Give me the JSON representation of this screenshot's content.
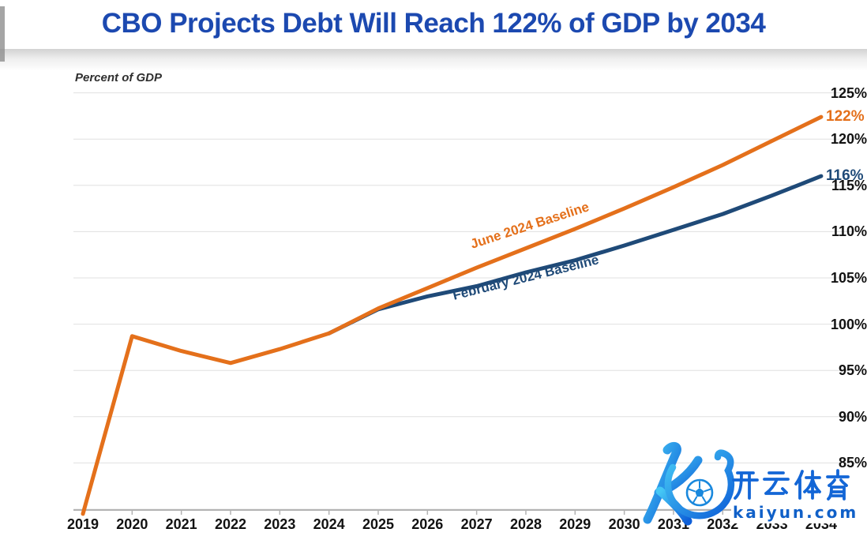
{
  "title": "CBO Projects Debt Will Reach 122% of GDP by 2034",
  "chart_data": {
    "type": "line",
    "title": "CBO Projects Debt Will Reach 122% of GDP by 2034",
    "xlabel": "",
    "ylabel": "Percent of GDP",
    "ylim": [
      80,
      125
    ],
    "grid": true,
    "legend_position": "inline-rotated-labels",
    "x": [
      2019,
      2020,
      2021,
      2022,
      2023,
      2024,
      2025,
      2026,
      2027,
      2028,
      2029,
      2030,
      2031,
      2032,
      2033,
      2034
    ],
    "y_axis": {
      "ticks": [
        {
          "value": 125,
          "label": "125%"
        },
        {
          "value": 120,
          "label": "120%"
        },
        {
          "value": 115,
          "label": "115%"
        },
        {
          "value": 110,
          "label": "110%"
        },
        {
          "value": 105,
          "label": "105%"
        },
        {
          "value": 100,
          "label": "100%"
        },
        {
          "value": 95,
          "label": "95%"
        },
        {
          "value": 90,
          "label": "90%"
        },
        {
          "value": 85,
          "label": "85%"
        },
        {
          "value": 80,
          "label": "80%"
        }
      ]
    },
    "x_axis": {
      "ticks": [
        {
          "value": 2019,
          "label": "2019"
        },
        {
          "value": 2020,
          "label": "2020"
        },
        {
          "value": 2021,
          "label": "2021"
        },
        {
          "value": 2022,
          "label": "2022"
        },
        {
          "value": 2023,
          "label": "2023"
        },
        {
          "value": 2024,
          "label": "2024"
        },
        {
          "value": 2025,
          "label": "2025"
        },
        {
          "value": 2026,
          "label": "2026"
        },
        {
          "value": 2027,
          "label": "2027"
        },
        {
          "value": 2028,
          "label": "2028"
        },
        {
          "value": 2029,
          "label": "2029"
        },
        {
          "value": 2030,
          "label": "2030"
        },
        {
          "value": 2031,
          "label": "2031"
        },
        {
          "value": 2032,
          "label": "2032"
        },
        {
          "value": 2033,
          "label": "2033"
        },
        {
          "value": 2034,
          "label": "2034"
        }
      ]
    },
    "series": [
      {
        "name": "June 2024 Baseline",
        "color": "#e4701b",
        "start_year": 2019,
        "values": [
          79.5,
          98.7,
          97.1,
          95.8,
          97.3,
          99.0,
          101.7,
          103.9,
          106.1,
          108.2,
          110.3,
          112.5,
          114.8,
          117.2,
          119.8,
          122.4
        ],
        "end_label": "122%"
      },
      {
        "name": "February 2024 Baseline",
        "color": "#1f4a78",
        "start_year": 2024,
        "values": [
          99.0,
          101.6,
          103.0,
          104.1,
          105.6,
          106.9,
          108.5,
          110.2,
          111.9,
          113.9,
          116.0
        ],
        "end_label": "116%"
      }
    ]
  },
  "watermark": {
    "cjk_text": "开云体育",
    "domain": "kaiyun.com",
    "brand_color": "#1366d6"
  }
}
